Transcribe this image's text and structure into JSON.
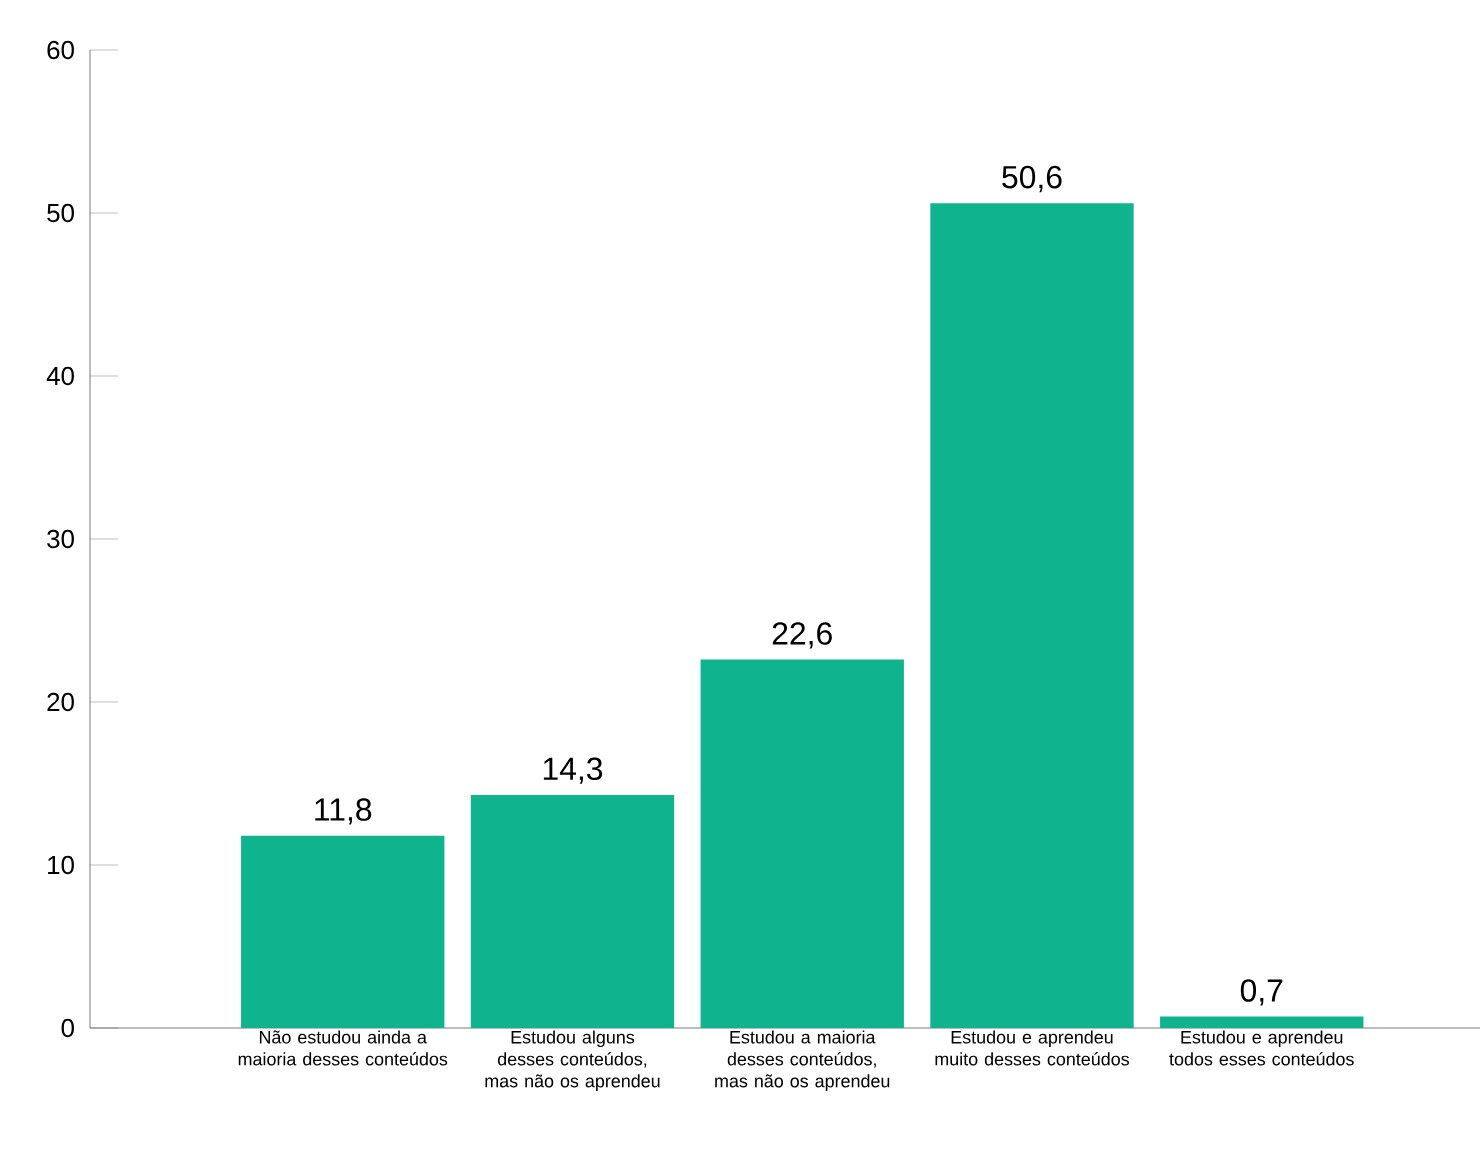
{
  "chart_data": {
    "type": "bar",
    "categories": [
      "Não estudou ainda a maioria desses conteúdos",
      "Estudou alguns desses conteúdos, mas não os aprendeu",
      "Estudou a maioria desses conteúdos, mas não os aprendeu",
      "Estudou e aprendeu muito desses conteúdos",
      "Estudou e aprendeu todos esses conteúdos"
    ],
    "values": [
      11.8,
      14.3,
      22.6,
      50.6,
      0.7
    ],
    "value_labels": [
      "11,8",
      "14,3",
      "22,6",
      "50,6",
      "0,7"
    ],
    "color": "#0fb38d",
    "ylim": [
      0,
      60
    ],
    "yticks": [
      0,
      10,
      20,
      30,
      40,
      50,
      60
    ]
  }
}
